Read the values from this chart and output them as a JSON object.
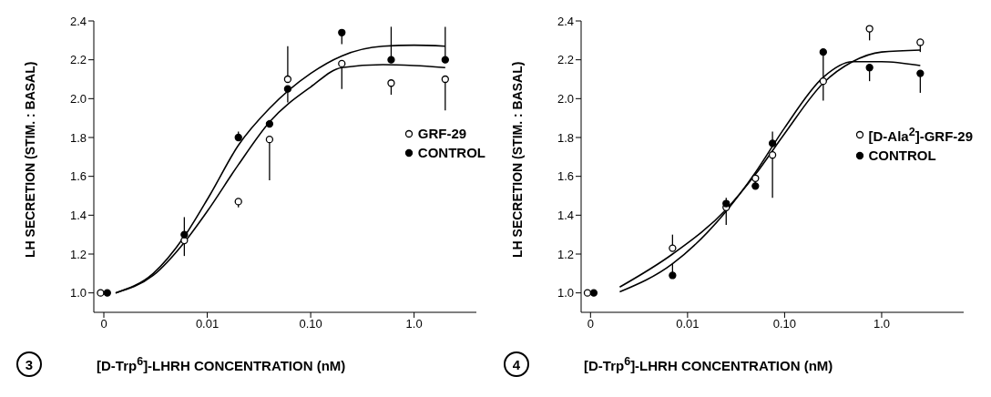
{
  "chart_data": [
    {
      "type": "scatter",
      "ylabel": "LH SECRETION (STIM. : BASAL)",
      "xlabel": "[D-Trp$^{6}$]-LHRH CONCENTRATION  (nM)",
      "annotations": [
        "3"
      ],
      "log": "x",
      "marker": "circle",
      "legend": "right",
      "xlim": [
        0.0008,
        4
      ],
      "ylim": [
        0.9,
        2.4
      ],
      "xticks": [
        {
          "value": 0.001,
          "label": "0"
        },
        {
          "value": 0.01,
          "label": "0.01"
        },
        {
          "value": 0.1,
          "label": "0.10"
        },
        {
          "value": 1,
          "label": "1.0"
        }
      ],
      "yticks": [
        {
          "value": 1.0,
          "label": "1.0"
        },
        {
          "value": 1.2,
          "label": "1.2"
        },
        {
          "value": 1.4,
          "label": "1.4"
        },
        {
          "value": 1.6,
          "label": "1.6"
        },
        {
          "value": 1.8,
          "label": "1.8"
        },
        {
          "value": 2.0,
          "label": "2.0"
        },
        {
          "value": 2.2,
          "label": "2.2"
        },
        {
          "value": 2.4,
          "label": "2.4"
        }
      ],
      "series": [
        {
          "name": "GRF-29",
          "color": "#ffffff",
          "x": [
            0.00093,
            0.006,
            0.02,
            0.04,
            0.06,
            0.2,
            0.6,
            2.0
          ],
          "values": [
            1.0,
            1.27,
            1.47,
            1.79,
            2.1,
            2.18,
            2.08,
            2.1
          ],
          "errors": [
            null,
            [
              1.19,
              1.27
            ],
            [
              1.44,
              1.47
            ],
            [
              1.58,
              1.79
            ],
            [
              2.1,
              2.27
            ],
            [
              2.05,
              2.18
            ],
            [
              2.02,
              2.08
            ],
            [
              1.94,
              2.1
            ]
          ]
        },
        {
          "name": "CONTROL",
          "color": "#000000",
          "x": [
            0.00108,
            0.006,
            0.02,
            0.04,
            0.06,
            0.2,
            0.6,
            2.0
          ],
          "values": [
            1.0,
            1.3,
            1.8,
            1.87,
            2.05,
            2.34,
            2.2,
            2.2
          ],
          "errors": [
            null,
            [
              1.3,
              1.39
            ],
            [
              1.8,
              1.83
            ],
            [
              1.87,
              1.89
            ],
            [
              1.98,
              2.05
            ],
            [
              2.28,
              2.34
            ],
            [
              2.2,
              2.37
            ],
            [
              2.2,
              2.37
            ]
          ]
        },
        {
          "type": "line",
          "marker": "none",
          "color": "#000000",
          "x": [
            0.0013,
            0.003,
            0.006,
            0.0105,
            0.02,
            0.04,
            0.1,
            0.2,
            0.5,
            1,
            2
          ],
          "values": [
            1.0,
            1.1,
            1.29,
            1.5,
            1.76,
            1.95,
            2.13,
            2.22,
            2.27,
            2.275,
            2.27
          ]
        },
        {
          "type": "line",
          "marker": "none",
          "color": "#000000",
          "x": [
            0.0013,
            0.003,
            0.006,
            0.01,
            0.02,
            0.04,
            0.1,
            0.2,
            0.5,
            1,
            2
          ],
          "values": [
            1.0,
            1.09,
            1.26,
            1.42,
            1.66,
            1.88,
            2.06,
            2.16,
            2.175,
            2.17,
            2.16
          ]
        }
      ]
    },
    {
      "type": "scatter",
      "ylabel": "LH SECRETION (STIM. : BASAL)",
      "xlabel": "[D-Trp$^{6}$]-LHRH CONCENTRATION (nM)",
      "annotations": [
        "4"
      ],
      "log": "x",
      "marker": "circle",
      "legend": "right",
      "xlim": [
        0.0008,
        7
      ],
      "ylim": [
        0.9,
        2.4
      ],
      "xticks": [
        {
          "value": 0.001,
          "label": "0"
        },
        {
          "value": 0.01,
          "label": "0.01"
        },
        {
          "value": 0.1,
          "label": "0.10"
        },
        {
          "value": 1,
          "label": "1.0"
        }
      ],
      "yticks": [
        {
          "value": 1.0,
          "label": "1.0"
        },
        {
          "value": 1.2,
          "label": "1.2"
        },
        {
          "value": 1.4,
          "label": "1.4"
        },
        {
          "value": 1.6,
          "label": "1.6"
        },
        {
          "value": 1.8,
          "label": "1.8"
        },
        {
          "value": 2.0,
          "label": "2.0"
        },
        {
          "value": 2.2,
          "label": "2.2"
        },
        {
          "value": 2.4,
          "label": "2.4"
        }
      ],
      "series": [
        {
          "name": "[D-Ala$^{2}$]-GRF-29",
          "color": "#ffffff",
          "x": [
            0.00093,
            0.007,
            0.025,
            0.05,
            0.075,
            0.25,
            0.75,
            2.5
          ],
          "values": [
            1.0,
            1.23,
            1.44,
            1.59,
            1.71,
            2.09,
            2.36,
            2.29
          ],
          "errors": [
            null,
            [
              1.23,
              1.3
            ],
            [
              1.35,
              1.44
            ],
            [
              1.56,
              1.59
            ],
            [
              1.49,
              1.71
            ],
            [
              1.99,
              2.09
            ],
            [
              2.3,
              2.36
            ],
            [
              2.24,
              2.29
            ]
          ]
        },
        {
          "name": "CONTROL",
          "color": "#000000",
          "x": [
            0.00108,
            0.007,
            0.025,
            0.05,
            0.075,
            0.25,
            0.75,
            2.5
          ],
          "values": [
            1.0,
            1.09,
            1.46,
            1.55,
            1.77,
            2.24,
            2.16,
            2.13
          ],
          "errors": [
            null,
            [
              1.09,
              1.15
            ],
            [
              1.46,
              1.49
            ],
            [
              1.55,
              1.58
            ],
            [
              1.77,
              1.83
            ],
            [
              2.1,
              2.24
            ],
            [
              2.09,
              2.16
            ],
            [
              2.03,
              2.13
            ]
          ]
        },
        {
          "type": "line",
          "marker": "none",
          "color": "#000000",
          "x": [
            0.002,
            0.007,
            0.025,
            0.05,
            0.1,
            0.25,
            0.5,
            1,
            2.5
          ],
          "values": [
            1.03,
            1.2,
            1.43,
            1.61,
            1.82,
            2.08,
            2.19,
            2.24,
            2.25
          ]
        },
        {
          "type": "line",
          "marker": "none",
          "color": "#000000",
          "x": [
            0.002,
            0.007,
            0.025,
            0.05,
            0.1,
            0.25,
            0.5,
            1,
            2.5
          ],
          "values": [
            1.005,
            1.15,
            1.42,
            1.62,
            1.85,
            2.11,
            2.19,
            2.19,
            2.17
          ]
        }
      ]
    }
  ]
}
